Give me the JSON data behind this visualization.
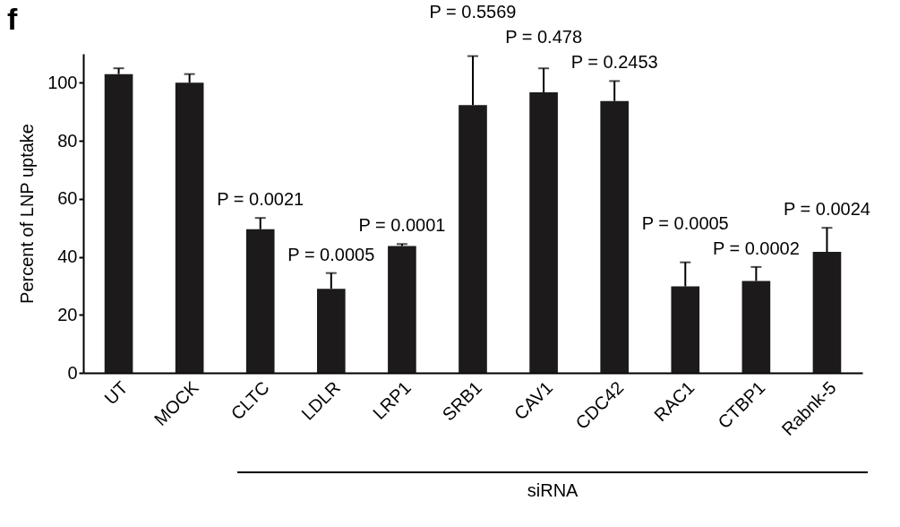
{
  "chart_data": {
    "type": "bar",
    "title": "f",
    "ylabel": "Percent of LNP uptake",
    "categories": [
      "UT",
      "MOCK",
      "CLTC",
      "LDLR",
      "LRP1",
      "SRB1",
      "CAV1",
      "CDC42",
      "RAC1",
      "CTBP1",
      "Rabnk-5"
    ],
    "values": [
      103,
      100,
      49.5,
      29,
      43.7,
      92.3,
      96.7,
      93.7,
      29.8,
      31.7,
      41.7
    ],
    "errors": [
      [
        103,
        105
      ],
      [
        100,
        103
      ],
      [
        49.5,
        53.4
      ],
      [
        29,
        34.4
      ],
      [
        43.7,
        44.4
      ],
      [
        92.3,
        109.2
      ],
      [
        96.7,
        105
      ],
      [
        93.7,
        100.6
      ],
      [
        29.8,
        38.1
      ],
      [
        31.7,
        36.5
      ],
      [
        41.7,
        50
      ]
    ],
    "color": "#1c1a1b",
    "ylim": [
      0,
      110
    ],
    "yticks": [
      0,
      20,
      40,
      60,
      80,
      100
    ],
    "grid": false,
    "annotations": [
      {
        "text": "P = 0.0021",
        "x": "CLTC",
        "y": 53.4
      },
      {
        "text": "P = 0.0005",
        "x": "LDLR",
        "y": 34.4
      },
      {
        "text": "P = 0.0001",
        "x": "LRP1",
        "y": 44.4
      },
      {
        "text": "P = 0.5569",
        "x": "SRB1",
        "y": 109.2
      },
      {
        "text": "P = 0.478",
        "x": "CAV1",
        "y": 105
      },
      {
        "text": "P = 0.2453",
        "x": "CDC42",
        "y": 100.6
      },
      {
        "text": "P = 0.0005",
        "x": "RAC1",
        "y": 38.1
      },
      {
        "text": "P = 0.0002",
        "x": "CTBP1",
        "y": 36.5
      },
      {
        "text": "P = 0.0024",
        "x": "Rabnk-5",
        "y": 50
      },
      "siRNA"
    ]
  }
}
